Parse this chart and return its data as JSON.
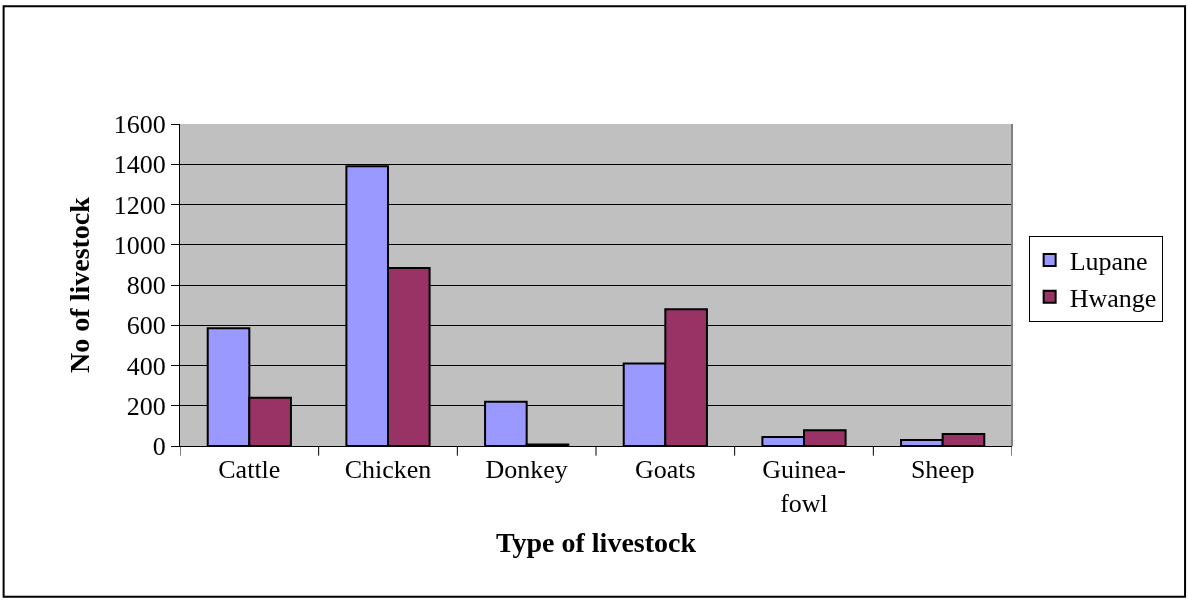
{
  "chart_data": {
    "type": "bar",
    "xlabel": "Type of livestock",
    "ylabel": "No of livestock",
    "categories": [
      "Cattle",
      "Chicken",
      "Donkey",
      "Goats",
      "Guinea-fowl",
      "Sheep"
    ],
    "series": [
      {
        "name": "Lupane",
        "color": "#9999ff",
        "values": [
          585,
          1390,
          220,
          410,
          45,
          30
        ]
      },
      {
        "name": "Hwange",
        "color": "#993366",
        "values": [
          240,
          885,
          8,
          680,
          78,
          60
        ]
      }
    ],
    "ylim": [
      0,
      1600
    ],
    "yticks": [
      0,
      200,
      400,
      600,
      800,
      1000,
      1200,
      1400,
      1600
    ],
    "grid": "y",
    "legend": "right"
  }
}
